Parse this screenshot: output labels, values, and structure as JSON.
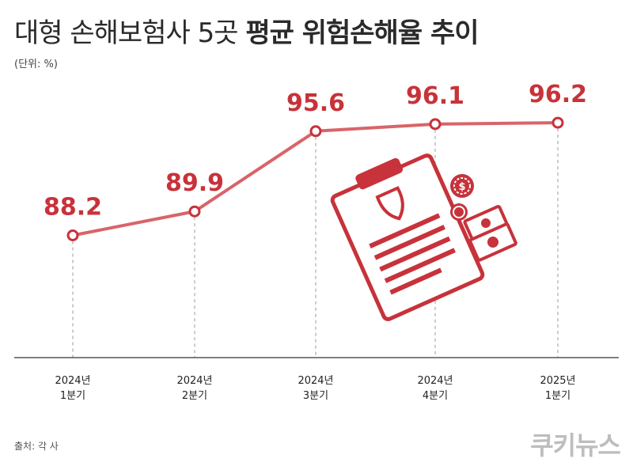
{
  "header": {
    "title_light": "대형 손해보험사 5곳",
    "title_bold": "평균 위험손해율 추이",
    "unit": "(단위: %)"
  },
  "footer": {
    "source": "출처: 각 사",
    "logo": "쿠키뉴스"
  },
  "colors": {
    "accent": "#c8323a",
    "line": "#d8646a",
    "guide": "#9a9a9a",
    "axis": "#555555"
  },
  "chart_data": {
    "type": "line",
    "title": "대형 손해보험사 5곳 평균 위험손해율 추이",
    "ylabel": "(단위: %)",
    "categories": [
      [
        "2024년",
        "1분기"
      ],
      [
        "2024년",
        "2분기"
      ],
      [
        "2024년",
        "3분기"
      ],
      [
        "2024년",
        "4분기"
      ],
      [
        "2025년",
        "1분기"
      ]
    ],
    "values": [
      88.2,
      89.9,
      95.6,
      96.1,
      96.2
    ],
    "labels": [
      "88.2",
      "89.9",
      "95.6",
      "96.1",
      "96.2"
    ],
    "grid": false,
    "legend": "none"
  }
}
